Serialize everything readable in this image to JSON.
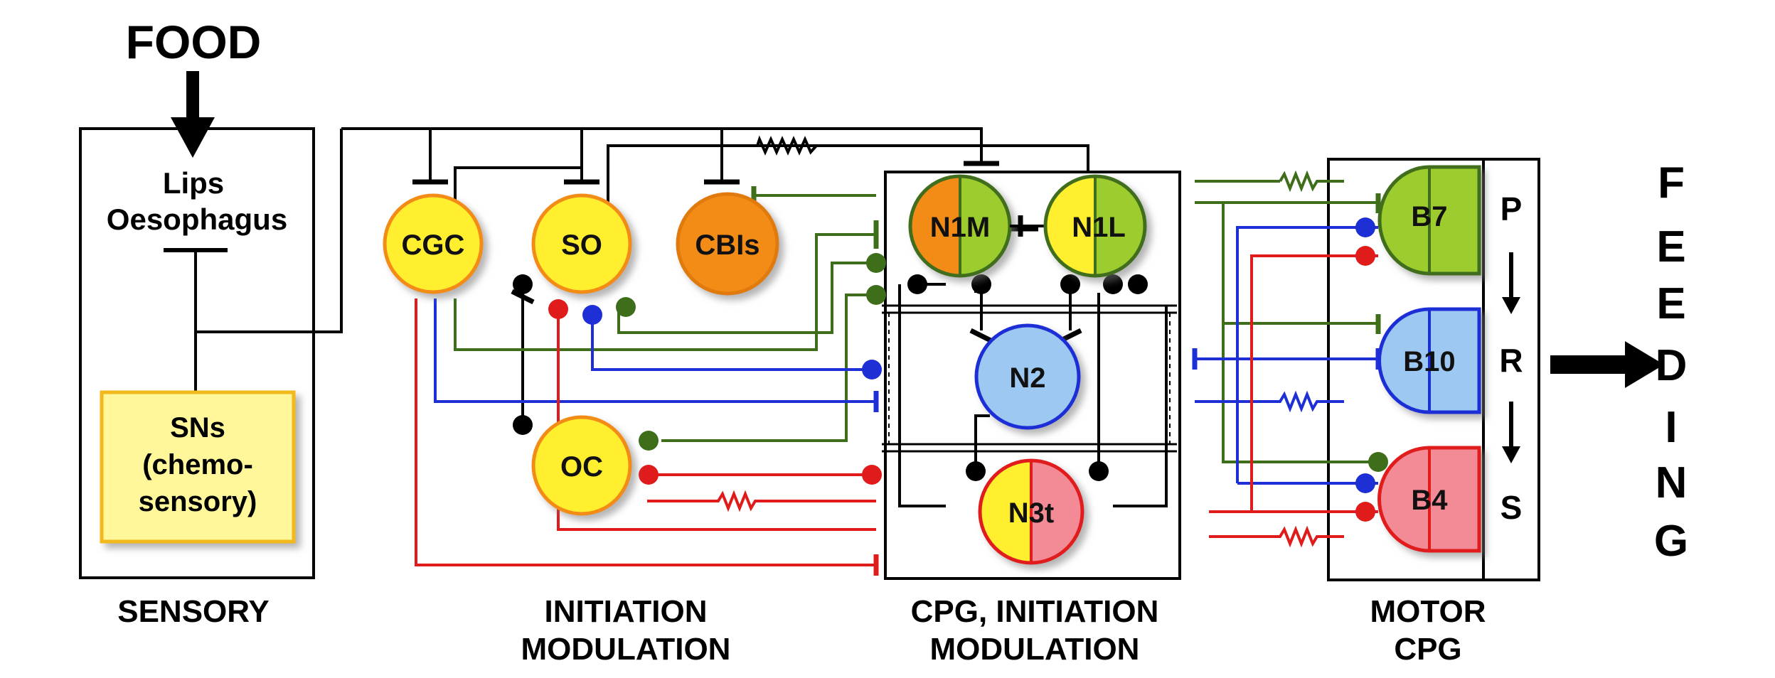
{
  "title": "FOOD",
  "sensory": {
    "lips": "Lips",
    "oesophagus": "Oesophagus",
    "sns_line1": "SNs",
    "sns_line2": "(chemo-",
    "sns_line3": "sensory)",
    "caption": "SENSORY"
  },
  "neurons": {
    "cgc": "CGC",
    "so": "SO",
    "cbis": "CBIs",
    "oc": "OC",
    "n1m": "N1M",
    "n1l": "N1L",
    "n2": "N2",
    "n3t": "N3t",
    "b7": "B7",
    "b10": "B10",
    "b4": "B4"
  },
  "captions": {
    "initiation_line1": "INITIATION",
    "initiation_line2": "MODULATION",
    "cpg_line1": "CPG, INITIATION",
    "cpg_line2": "MODULATION",
    "motor_line1": "MOTOR",
    "motor_line2": "CPG"
  },
  "phases": {
    "p": "P",
    "r": "R",
    "s": "S"
  },
  "output_letters": [
    "F",
    "E",
    "E",
    "D",
    "I",
    "N",
    "G"
  ],
  "colors": {
    "black": "#000000",
    "green": "#3f6e1a",
    "blue": "#1f2fd6",
    "red": "#e01b1b",
    "yellow": "#ffef2e",
    "orange": "#f28c16",
    "lightgreen": "#9ccc2e",
    "lightblue": "#9cc8f2",
    "pink": "#f28b96"
  }
}
